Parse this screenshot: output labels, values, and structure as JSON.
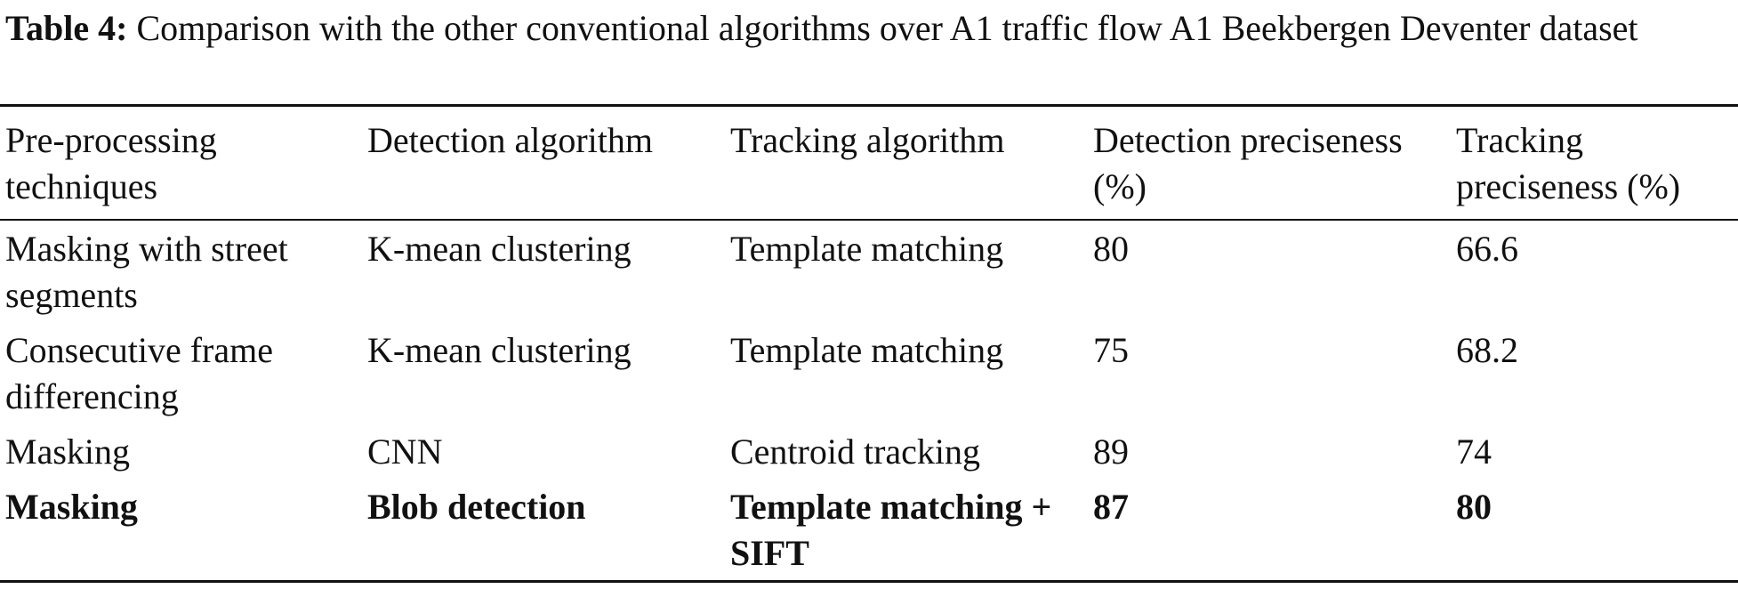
{
  "caption": {
    "label": "Table 4:",
    "text": "Comparison with the other conventional algorithms over A1 traffic flow A1 Beekbergen Deventer dataset"
  },
  "table": {
    "header": [
      "Pre-processing techniques",
      "Detection algorithm",
      "Tracking algorithm",
      "Detection preciseness (%)",
      "Tracking preciseness (%)"
    ],
    "rows": [
      [
        "Masking with street segments",
        "K-mean clustering",
        "Template matching",
        "80",
        "66.6"
      ],
      [
        "Consecutive frame differencing",
        "K-mean clustering",
        "Template matching",
        "75",
        "68.2"
      ],
      [
        "Masking",
        "CNN",
        "Centroid tracking",
        "89",
        "74"
      ],
      [
        "Masking",
        "Blob detection",
        "Template matching + SIFT",
        "87",
        "80"
      ]
    ]
  }
}
